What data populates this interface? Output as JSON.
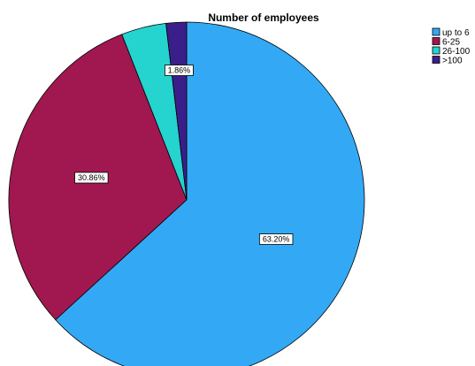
{
  "chart_data": {
    "type": "pie",
    "title": "Number of employees",
    "categories": [
      "up to 6",
      "6-25",
      "26-100",
      ">100"
    ],
    "values": [
      63.2,
      30.86,
      4.08,
      1.86
    ],
    "data_labels": [
      "63.20%",
      "30.86%",
      "",
      "1.86%"
    ],
    "colors": [
      "#33a9f5",
      "#a0184f",
      "#25d3cf",
      "#3a1f8a"
    ],
    "start_angle_deg": 0,
    "direction": "clockwise",
    "legend": {
      "position": "top-right",
      "entries": [
        "up to 6",
        "6-25",
        "26-100",
        ">100"
      ]
    }
  }
}
